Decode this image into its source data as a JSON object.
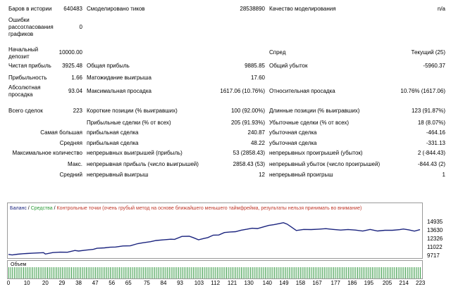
{
  "report": {
    "bars_label": "Баров в истории",
    "bars_value": "640483",
    "ticks_label": "Смоделировано тиков",
    "ticks_value": "28538890",
    "quality_label": "Качество моделирования",
    "quality_value": "n/a",
    "errors_label": "Ошибки рассогласования графиков",
    "errors_value": "0",
    "deposit_label": "Начальный депозит",
    "deposit_value": "10000.00",
    "spread_label": "Спред",
    "spread_value": "Текущий (25)",
    "net_label": "Чистая прибыль",
    "net_value": "3925.48",
    "gross_profit_label": "Общая прибыль",
    "gross_profit_value": "9885.85",
    "gross_loss_label": "Общий убыток",
    "gross_loss_value": "-5960.37",
    "pf_label": "Прибыльность",
    "pf_value": "1.66",
    "expect_label": "Матожидание выигрыша",
    "expect_value": "17.60",
    "abs_dd_label": "Абсолютная просадка",
    "abs_dd_value": "93.04",
    "max_dd_label": "Максимальная просадка",
    "max_dd_value": "1617.06 (10.76%)",
    "rel_dd_label": "Относительная просадка",
    "rel_dd_value": "10.76% (1617.06)",
    "trades_label": "Всего сделок",
    "trades_value": "223",
    "short_label": "Короткие позиции (% выигравших)",
    "short_value": "100 (92.00%)",
    "long_label": "Длинные позиции (% выигравших)",
    "long_value": "123 (91.87%)",
    "profit_trades_label": "Прибыльные сделки (% от всех)",
    "profit_trades_value": "205 (91.93%)",
    "loss_trades_label": "Убыточные сделки (% от всех)",
    "loss_trades_value": "18 (8.07%)",
    "largest_label": "Самая большая",
    "largest_profit_label": "прибыльная сделка",
    "largest_profit_value": "240.87",
    "largest_loss_label": "убыточная сделка",
    "largest_loss_value": "-464.16",
    "average_label": "Средняя",
    "average_profit_label": "прибыльная сделка",
    "average_profit_value": "48.22",
    "average_loss_label": "убыточная сделка",
    "average_loss_value": "-331.13",
    "max_count_label": "Максимальное количество",
    "cons_wins_label": "непрерывных выигрышей (прибыль)",
    "cons_wins_value": "53 (2858.43)",
    "cons_losses_label": "непрерывных проигрышей (убыток)",
    "cons_losses_value": "2 (-844.43)",
    "max_label": "Макс.",
    "cons_profit_label": "непрерывная прибыль (число выигрышей)",
    "cons_profit_value": "2858.43 (53)",
    "cons_loss_label": "непрерывный убыток (число проигрышей)",
    "cons_loss_value": "-844.43 (2)",
    "avg_label": "Средний",
    "avg_win_label": "непрерывный выигрыш",
    "avg_win_value": "12",
    "avg_loss_label": "непрерывный проигрыш",
    "avg_loss_value": "1"
  },
  "chart": {
    "legend_balance": "Баланс",
    "legend_sep1": " / ",
    "legend_equity": "Средства",
    "legend_sep2": " / ",
    "legend_points": "Контрольные точки (очень грубый метод на основе ближайшего меньшего таймфрейма, результаты нельзя принимать во внимание)",
    "volume_label": "Объем",
    "colors": {
      "balance": "#1a237e",
      "equity": "#2e9c3a",
      "points": "#c0392b",
      "volume": "#3c9c4a"
    }
  },
  "chart_data": {
    "type": "line",
    "series": [
      {
        "name": "Баланс",
        "x": [
          0,
          2,
          5,
          8,
          10,
          13,
          16,
          19,
          20,
          24,
          28,
          32,
          36,
          38,
          42,
          46,
          48,
          52,
          55,
          58,
          62,
          66,
          70,
          73,
          77,
          80,
          84,
          88,
          90,
          94,
          98,
          100,
          103,
          106,
          108,
          111,
          114,
          117,
          120,
          123,
          126,
          129,
          132,
          135,
          138,
          141,
          144,
          147,
          149,
          151,
          153,
          156,
          160,
          164,
          168,
          172,
          176,
          180,
          184,
          188,
          192,
          196,
          200,
          204,
          208,
          212,
          214,
          217,
          220,
          223
        ],
        "values": [
          9960,
          9870,
          9990,
          10060,
          10100,
          10140,
          10180,
          10230,
          10010,
          10240,
          10300,
          10290,
          10560,
          10480,
          10620,
          10740,
          10900,
          10970,
          11060,
          11100,
          11260,
          11280,
          11620,
          11760,
          11920,
          12110,
          12210,
          12300,
          12280,
          12740,
          12760,
          12560,
          12220,
          12420,
          12550,
          12930,
          12960,
          13340,
          13420,
          13470,
          13700,
          13840,
          14000,
          13960,
          14200,
          14430,
          14560,
          14740,
          14860,
          14640,
          14250,
          13650,
          13820,
          13790,
          13860,
          13940,
          13810,
          13720,
          13800,
          13720,
          13560,
          13810,
          13580,
          13680,
          13690,
          13780,
          13880,
          13750,
          13550,
          13780
        ]
      }
    ],
    "ylim": [
      9717,
      14935
    ],
    "yticks": [
      9717,
      11022,
      12326,
      13630,
      14935
    ],
    "xlim": [
      0,
      223
    ],
    "xticks": [
      0,
      10,
      20,
      29,
      38,
      47,
      56,
      65,
      75,
      84,
      93,
      103,
      112,
      121,
      130,
      140,
      149,
      158,
      167,
      177,
      186,
      195,
      205,
      214,
      223
    ]
  }
}
